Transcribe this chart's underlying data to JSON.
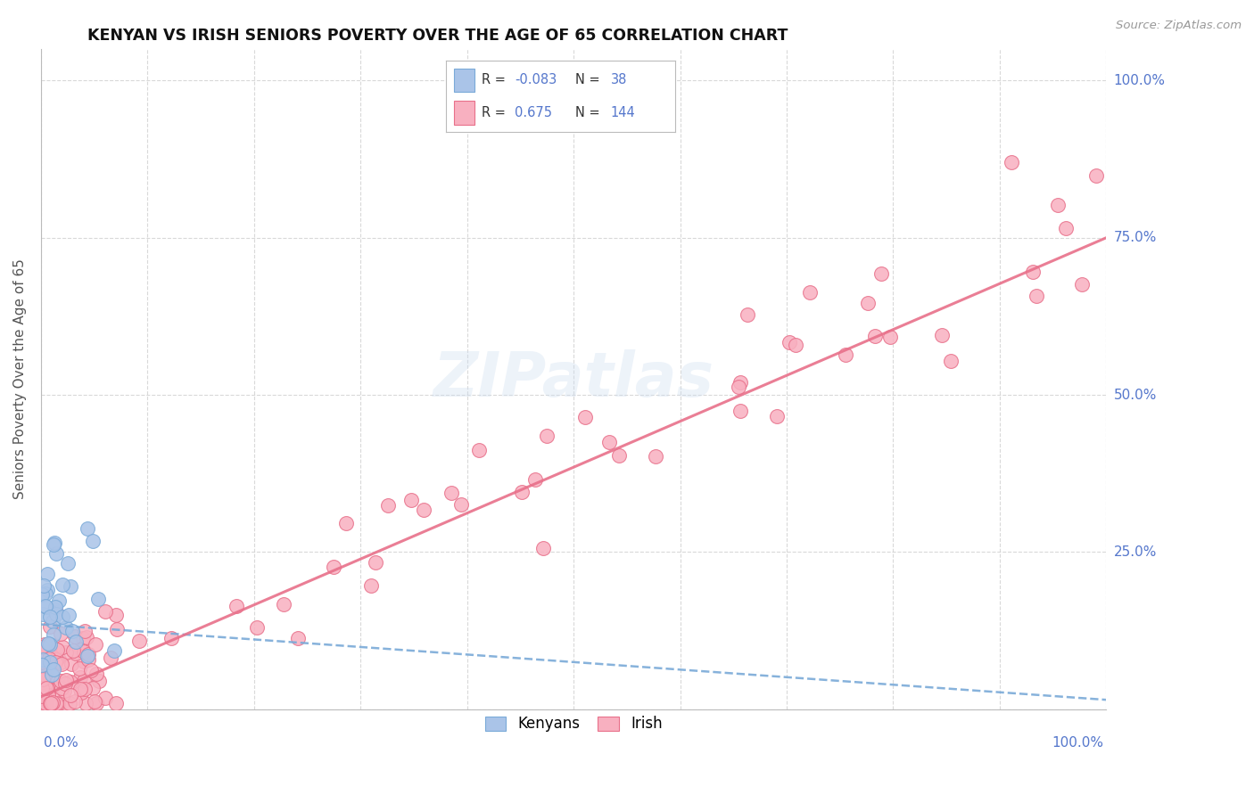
{
  "title": "KENYAN VS IRISH SENIORS POVERTY OVER THE AGE OF 65 CORRELATION CHART",
  "source": "Source: ZipAtlas.com",
  "ylabel": "Seniors Poverty Over the Age of 65",
  "kenyan_R": -0.083,
  "kenyan_N": 38,
  "irish_R": 0.675,
  "irish_N": 144,
  "kenyan_color": "#aac4e8",
  "kenyan_edge": "#7aaad8",
  "irish_color": "#f8b0c0",
  "irish_edge": "#e8708a",
  "kenyan_line_color": "#7aaad8",
  "irish_line_color": "#e8708a",
  "watermark": "ZIPatlas",
  "background_color": "#ffffff",
  "grid_color": "#d0d0d0",
  "label_color": "#5577cc",
  "title_color": "#111111",
  "source_color": "#999999",
  "ylabel_color": "#555555"
}
